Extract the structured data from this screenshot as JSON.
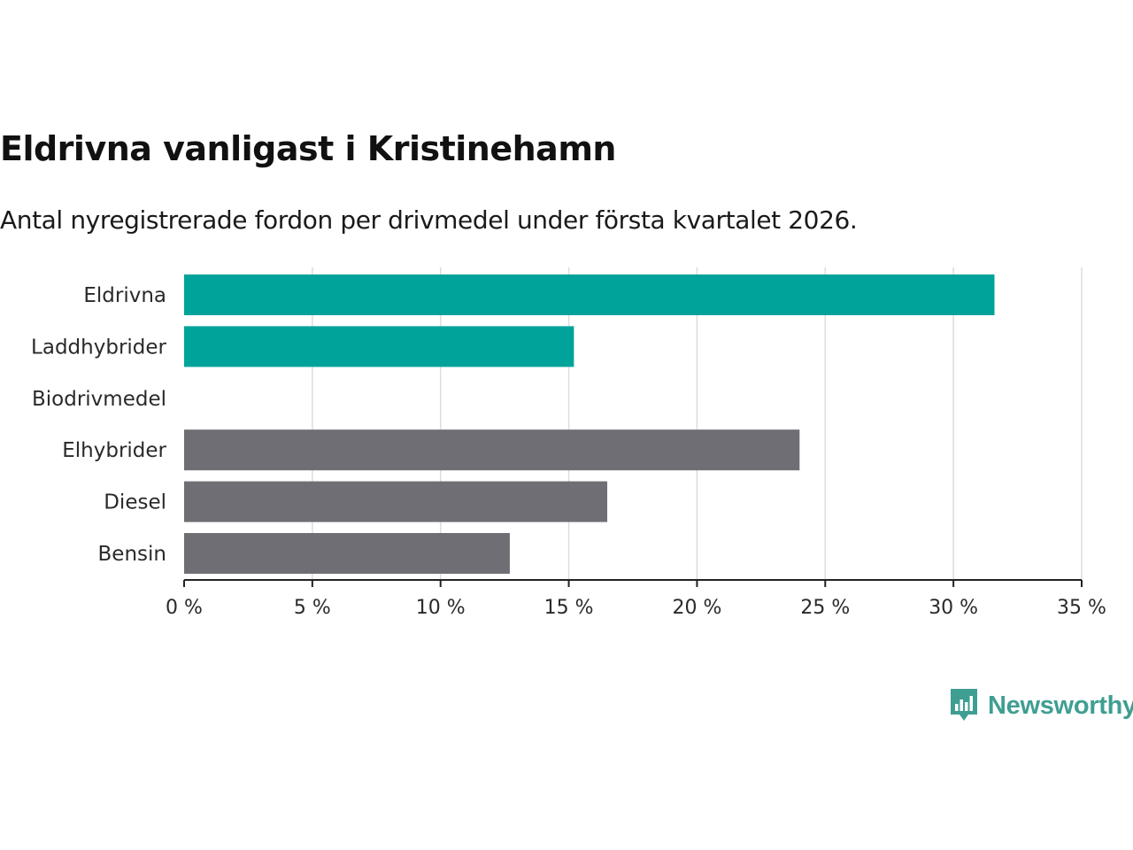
{
  "header": {
    "title": "Eldrivna vanligast i Kristinehamn",
    "subtitle": "Antal nyregistrerade fordon per drivmedel under första kvartalet 2026."
  },
  "chart_data": {
    "type": "bar",
    "orientation": "horizontal",
    "title": "Eldrivna vanligast i Kristinehamn",
    "subtitle": "Antal nyregistrerade fordon per drivmedel under första kvartalet 2026.",
    "categories": [
      "Eldrivna",
      "Laddhybrider",
      "Biodrivmedel",
      "Elhybrider",
      "Diesel",
      "Bensin"
    ],
    "values": [
      31.6,
      15.2,
      0,
      24.0,
      16.5,
      12.7
    ],
    "unit": "%",
    "xlim": [
      0,
      35
    ],
    "xticks": [
      0,
      5,
      10,
      15,
      20,
      25,
      30,
      35
    ],
    "xtick_labels": [
      "0 %",
      "5 %",
      "10 %",
      "15 %",
      "20 %",
      "25 %",
      "30 %",
      "35 %"
    ],
    "xlabel": "",
    "ylabel": "",
    "grid": "vertical",
    "bar_colors": [
      "#00a39a",
      "#00a39a",
      "#00a39a",
      "#6f6e74",
      "#6f6e74",
      "#6f6e74"
    ]
  },
  "logo": {
    "text": "Newsworthy",
    "color": "#3f9e92",
    "icon": "newsworthy-chart-bubble-icon"
  },
  "colors": {
    "accent": "#00a39a",
    "neutral": "#6f6e74",
    "grid": "#dddddd",
    "axis": "#222222"
  }
}
